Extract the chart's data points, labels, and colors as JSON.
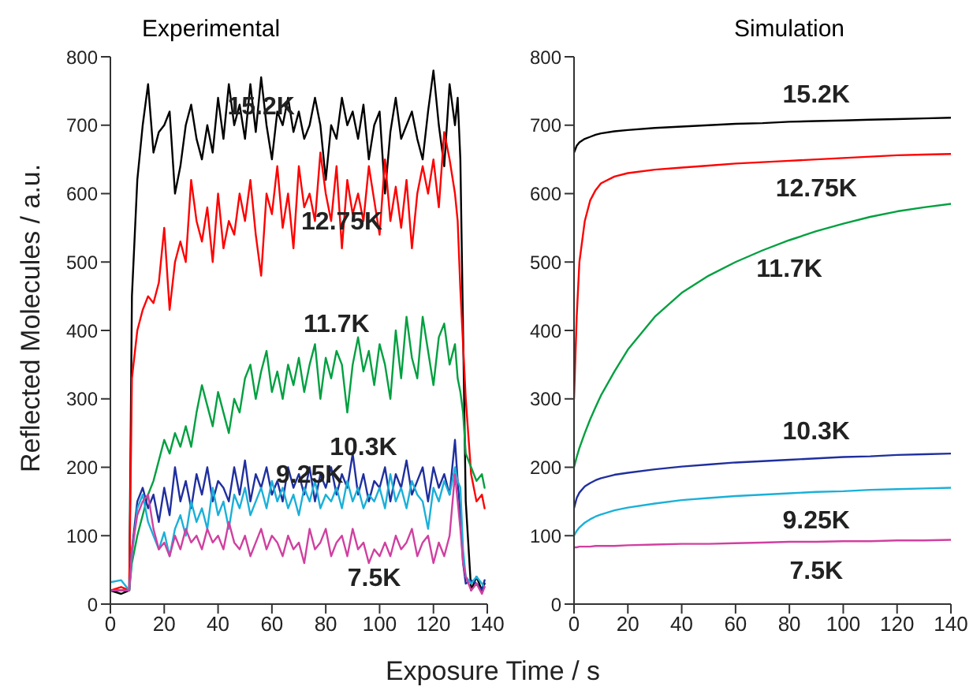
{
  "chart_data": [
    {
      "type": "line",
      "title": "Experimental",
      "xlabel": "Exposure Time / s",
      "ylabel": "Reflected  Molecules / a.u.",
      "xlim": [
        0,
        140
      ],
      "xticks": [
        0,
        20,
        40,
        60,
        80,
        100,
        120,
        140
      ],
      "ylim": [
        0,
        800
      ],
      "yticks": [
        0,
        100,
        200,
        300,
        400,
        500,
        600,
        700,
        800
      ],
      "grid": false,
      "legend": false,
      "marker": "none",
      "line_style": "solid",
      "x": [
        0,
        4,
        7,
        8,
        10,
        12,
        14,
        16,
        18,
        20,
        22,
        24,
        26,
        28,
        30,
        32,
        34,
        36,
        38,
        40,
        42,
        44,
        46,
        48,
        50,
        52,
        54,
        56,
        58,
        60,
        62,
        64,
        66,
        68,
        70,
        72,
        74,
        76,
        78,
        80,
        82,
        84,
        86,
        88,
        90,
        92,
        94,
        96,
        98,
        100,
        102,
        104,
        106,
        108,
        110,
        112,
        114,
        116,
        118,
        120,
        122,
        124,
        126,
        128,
        129,
        130,
        131,
        132,
        134,
        136,
        138,
        139
      ],
      "series": [
        {
          "color": "#000000",
          "values": [
            20,
            15,
            20,
            450,
            620,
            700,
            760,
            660,
            690,
            700,
            720,
            600,
            640,
            700,
            730,
            680,
            650,
            700,
            660,
            740,
            680,
            760,
            700,
            730,
            680,
            760,
            690,
            770,
            700,
            650,
            720,
            700,
            740,
            690,
            720,
            680,
            700,
            740,
            700,
            620,
            700,
            680,
            740,
            700,
            720,
            680,
            730,
            650,
            700,
            720,
            600,
            690,
            740,
            680,
            700,
            720,
            680,
            650,
            720,
            780,
            700,
            640,
            760,
            700,
            740,
            650,
            400,
            150,
            20,
            40,
            20,
            30
          ]
        },
        {
          "color": "#ff0000",
          "values": [
            20,
            25,
            20,
            330,
            400,
            430,
            450,
            440,
            470,
            550,
            430,
            500,
            530,
            500,
            620,
            560,
            530,
            580,
            500,
            600,
            520,
            560,
            540,
            600,
            560,
            620,
            540,
            480,
            600,
            570,
            640,
            550,
            600,
            520,
            640,
            580,
            600,
            560,
            660,
            600,
            560,
            640,
            520,
            620,
            570,
            600,
            560,
            640,
            590,
            540,
            650,
            560,
            610,
            550,
            620,
            520,
            600,
            640,
            600,
            650,
            580,
            690,
            650,
            600,
            560,
            460,
            380,
            300,
            190,
            150,
            160,
            140
          ]
        },
        {
          "color": "#00a040",
          "values": [
            20,
            20,
            20,
            60,
            100,
            130,
            160,
            180,
            210,
            240,
            220,
            250,
            230,
            260,
            230,
            280,
            320,
            290,
            260,
            310,
            280,
            250,
            300,
            280,
            330,
            350,
            300,
            340,
            370,
            310,
            340,
            300,
            350,
            320,
            360,
            310,
            350,
            380,
            300,
            360,
            330,
            370,
            350,
            280,
            350,
            390,
            340,
            370,
            320,
            380,
            350,
            300,
            400,
            330,
            420,
            360,
            330,
            420,
            370,
            320,
            390,
            410,
            350,
            380,
            330,
            310,
            280,
            220,
            200,
            180,
            190,
            170
          ]
        },
        {
          "color": "#1f2f9f",
          "values": [
            20,
            20,
            20,
            80,
            150,
            170,
            140,
            160,
            120,
            170,
            130,
            200,
            150,
            180,
            140,
            190,
            160,
            200,
            150,
            180,
            170,
            150,
            200,
            160,
            210,
            150,
            190,
            170,
            200,
            160,
            180,
            150,
            200,
            170,
            190,
            160,
            200,
            150,
            190,
            170,
            200,
            160,
            190,
            170,
            220,
            160,
            190,
            150,
            180,
            170,
            200,
            150,
            190,
            170,
            210,
            160,
            180,
            200,
            150,
            200,
            170,
            190,
            160,
            240,
            180,
            130,
            60,
            30,
            35,
            30,
            20,
            35
          ]
        },
        {
          "color": "#1ab0d8",
          "values": [
            32,
            35,
            20,
            70,
            140,
            160,
            120,
            100,
            80,
            105,
            70,
            110,
            130,
            100,
            150,
            120,
            140,
            110,
            170,
            130,
            150,
            110,
            160,
            140,
            170,
            130,
            150,
            170,
            140,
            180,
            150,
            170,
            140,
            160,
            130,
            170,
            150,
            180,
            140,
            160,
            150,
            170,
            140,
            180,
            150,
            170,
            140,
            160,
            150,
            170,
            140,
            190,
            150,
            170,
            140,
            180,
            160,
            150,
            110,
            170,
            150,
            180,
            160,
            200,
            180,
            170,
            80,
            40,
            30,
            40,
            30,
            25
          ]
        },
        {
          "color": "#d040a0",
          "values": [
            20,
            20,
            20,
            80,
            130,
            150,
            160,
            110,
            80,
            90,
            70,
            100,
            80,
            110,
            90,
            100,
            80,
            110,
            90,
            100,
            80,
            120,
            90,
            80,
            100,
            70,
            90,
            110,
            80,
            100,
            90,
            70,
            100,
            80,
            90,
            60,
            110,
            80,
            90,
            110,
            70,
            90,
            100,
            70,
            110,
            80,
            90,
            60,
            80,
            70,
            90,
            70,
            100,
            80,
            90,
            110,
            70,
            90,
            100,
            60,
            90,
            70,
            100,
            190,
            150,
            110,
            60,
            40,
            20,
            30,
            15,
            25
          ]
        }
      ],
      "annotations": [
        {
          "text": "15.2K",
          "x": 56,
          "y": 770
        },
        {
          "text": "12.75K",
          "x": 86,
          "y": 520
        },
        {
          "text": "11.7K",
          "x": 84,
          "y": 370
        },
        {
          "text": "10.3K",
          "x": 94,
          "y": 190
        },
        {
          "text": "9.25K",
          "x": 74,
          "y": 150
        },
        {
          "text": "7.5K",
          "x": 98,
          "y": 80
        }
      ]
    },
    {
      "type": "line",
      "title": "Simulation",
      "xlim": [
        0,
        140
      ],
      "xticks": [
        0,
        20,
        40,
        60,
        80,
        100,
        120,
        140
      ],
      "ylim": [
        0,
        800
      ],
      "yticks": [
        0,
        100,
        200,
        300,
        400,
        500,
        600,
        700,
        800
      ],
      "grid": false,
      "legend": false,
      "marker": "none",
      "line_style": "solid",
      "x": [
        0,
        1,
        2,
        4,
        6,
        8,
        10,
        15,
        20,
        30,
        40,
        50,
        60,
        70,
        80,
        90,
        100,
        110,
        120,
        130,
        140
      ],
      "series": [
        {
          "color": "#000000",
          "values": [
            660,
            670,
            675,
            680,
            683,
            686,
            688,
            691,
            693,
            696,
            698,
            700,
            702,
            703,
            705,
            706,
            707,
            708,
            709,
            710,
            711
          ]
        },
        {
          "color": "#ff0000",
          "values": [
            300,
            420,
            500,
            560,
            590,
            605,
            615,
            625,
            630,
            635,
            638,
            641,
            644,
            646,
            648,
            650,
            652,
            654,
            656,
            657,
            658
          ]
        },
        {
          "color": "#00a040",
          "values": [
            200,
            215,
            228,
            250,
            270,
            288,
            305,
            340,
            372,
            420,
            455,
            480,
            500,
            517,
            532,
            545,
            556,
            566,
            574,
            580,
            585
          ]
        },
        {
          "color": "#1f2f9f",
          "values": [
            140,
            155,
            163,
            172,
            177,
            181,
            184,
            189,
            192,
            197,
            201,
            204,
            207,
            209,
            211,
            213,
            215,
            216,
            218,
            219,
            220
          ]
        },
        {
          "color": "#1ab0d8",
          "values": [
            100,
            107,
            112,
            119,
            124,
            128,
            131,
            137,
            141,
            147,
            152,
            155,
            158,
            160,
            162,
            164,
            165,
            167,
            168,
            169,
            170
          ]
        },
        {
          "color": "#d040a0",
          "values": [
            83,
            83,
            84,
            84,
            84,
            85,
            85,
            85,
            86,
            87,
            88,
            88,
            89,
            90,
            91,
            91,
            92,
            92,
            93,
            93,
            94
          ]
        }
      ],
      "annotations": [
        {
          "text": "15.2K",
          "x": 90,
          "y": 706
        },
        {
          "text": "12.75K",
          "x": 90,
          "y": 650
        },
        {
          "text": "11.7K",
          "x": 80,
          "y": 532
        },
        {
          "text": "10.3K",
          "x": 90,
          "y": 213
        },
        {
          "text": "9.25K",
          "x": 90,
          "y": 164
        },
        {
          "text": "7.5K",
          "x": 90,
          "y": 91
        }
      ]
    }
  ]
}
